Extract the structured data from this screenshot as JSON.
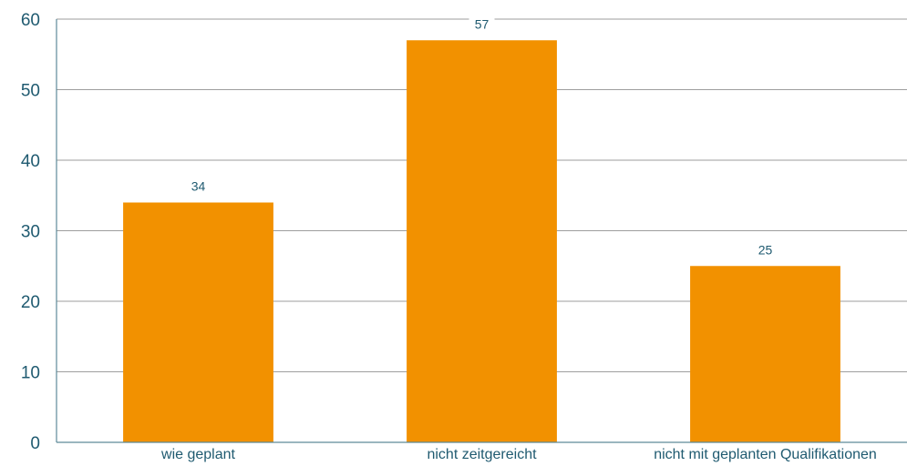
{
  "chart_data": {
    "type": "bar",
    "title": "",
    "xlabel": "",
    "ylabel": "",
    "categories": [
      "wie geplant",
      "nicht zeitgereicht",
      "nicht mit geplanten Qualifikationen"
    ],
    "values": [
      34,
      57,
      25
    ],
    "data_labels": [
      "34",
      "57",
      "25"
    ],
    "ylim": [
      0,
      60
    ],
    "yticks": [
      0,
      10,
      20,
      30,
      40,
      50,
      60
    ],
    "grid": true,
    "legend": "none",
    "colors": {
      "bar": "#f29100",
      "text": "#1f5a70",
      "grid": "#9e9e9e",
      "axis": "#5d8a99"
    }
  }
}
